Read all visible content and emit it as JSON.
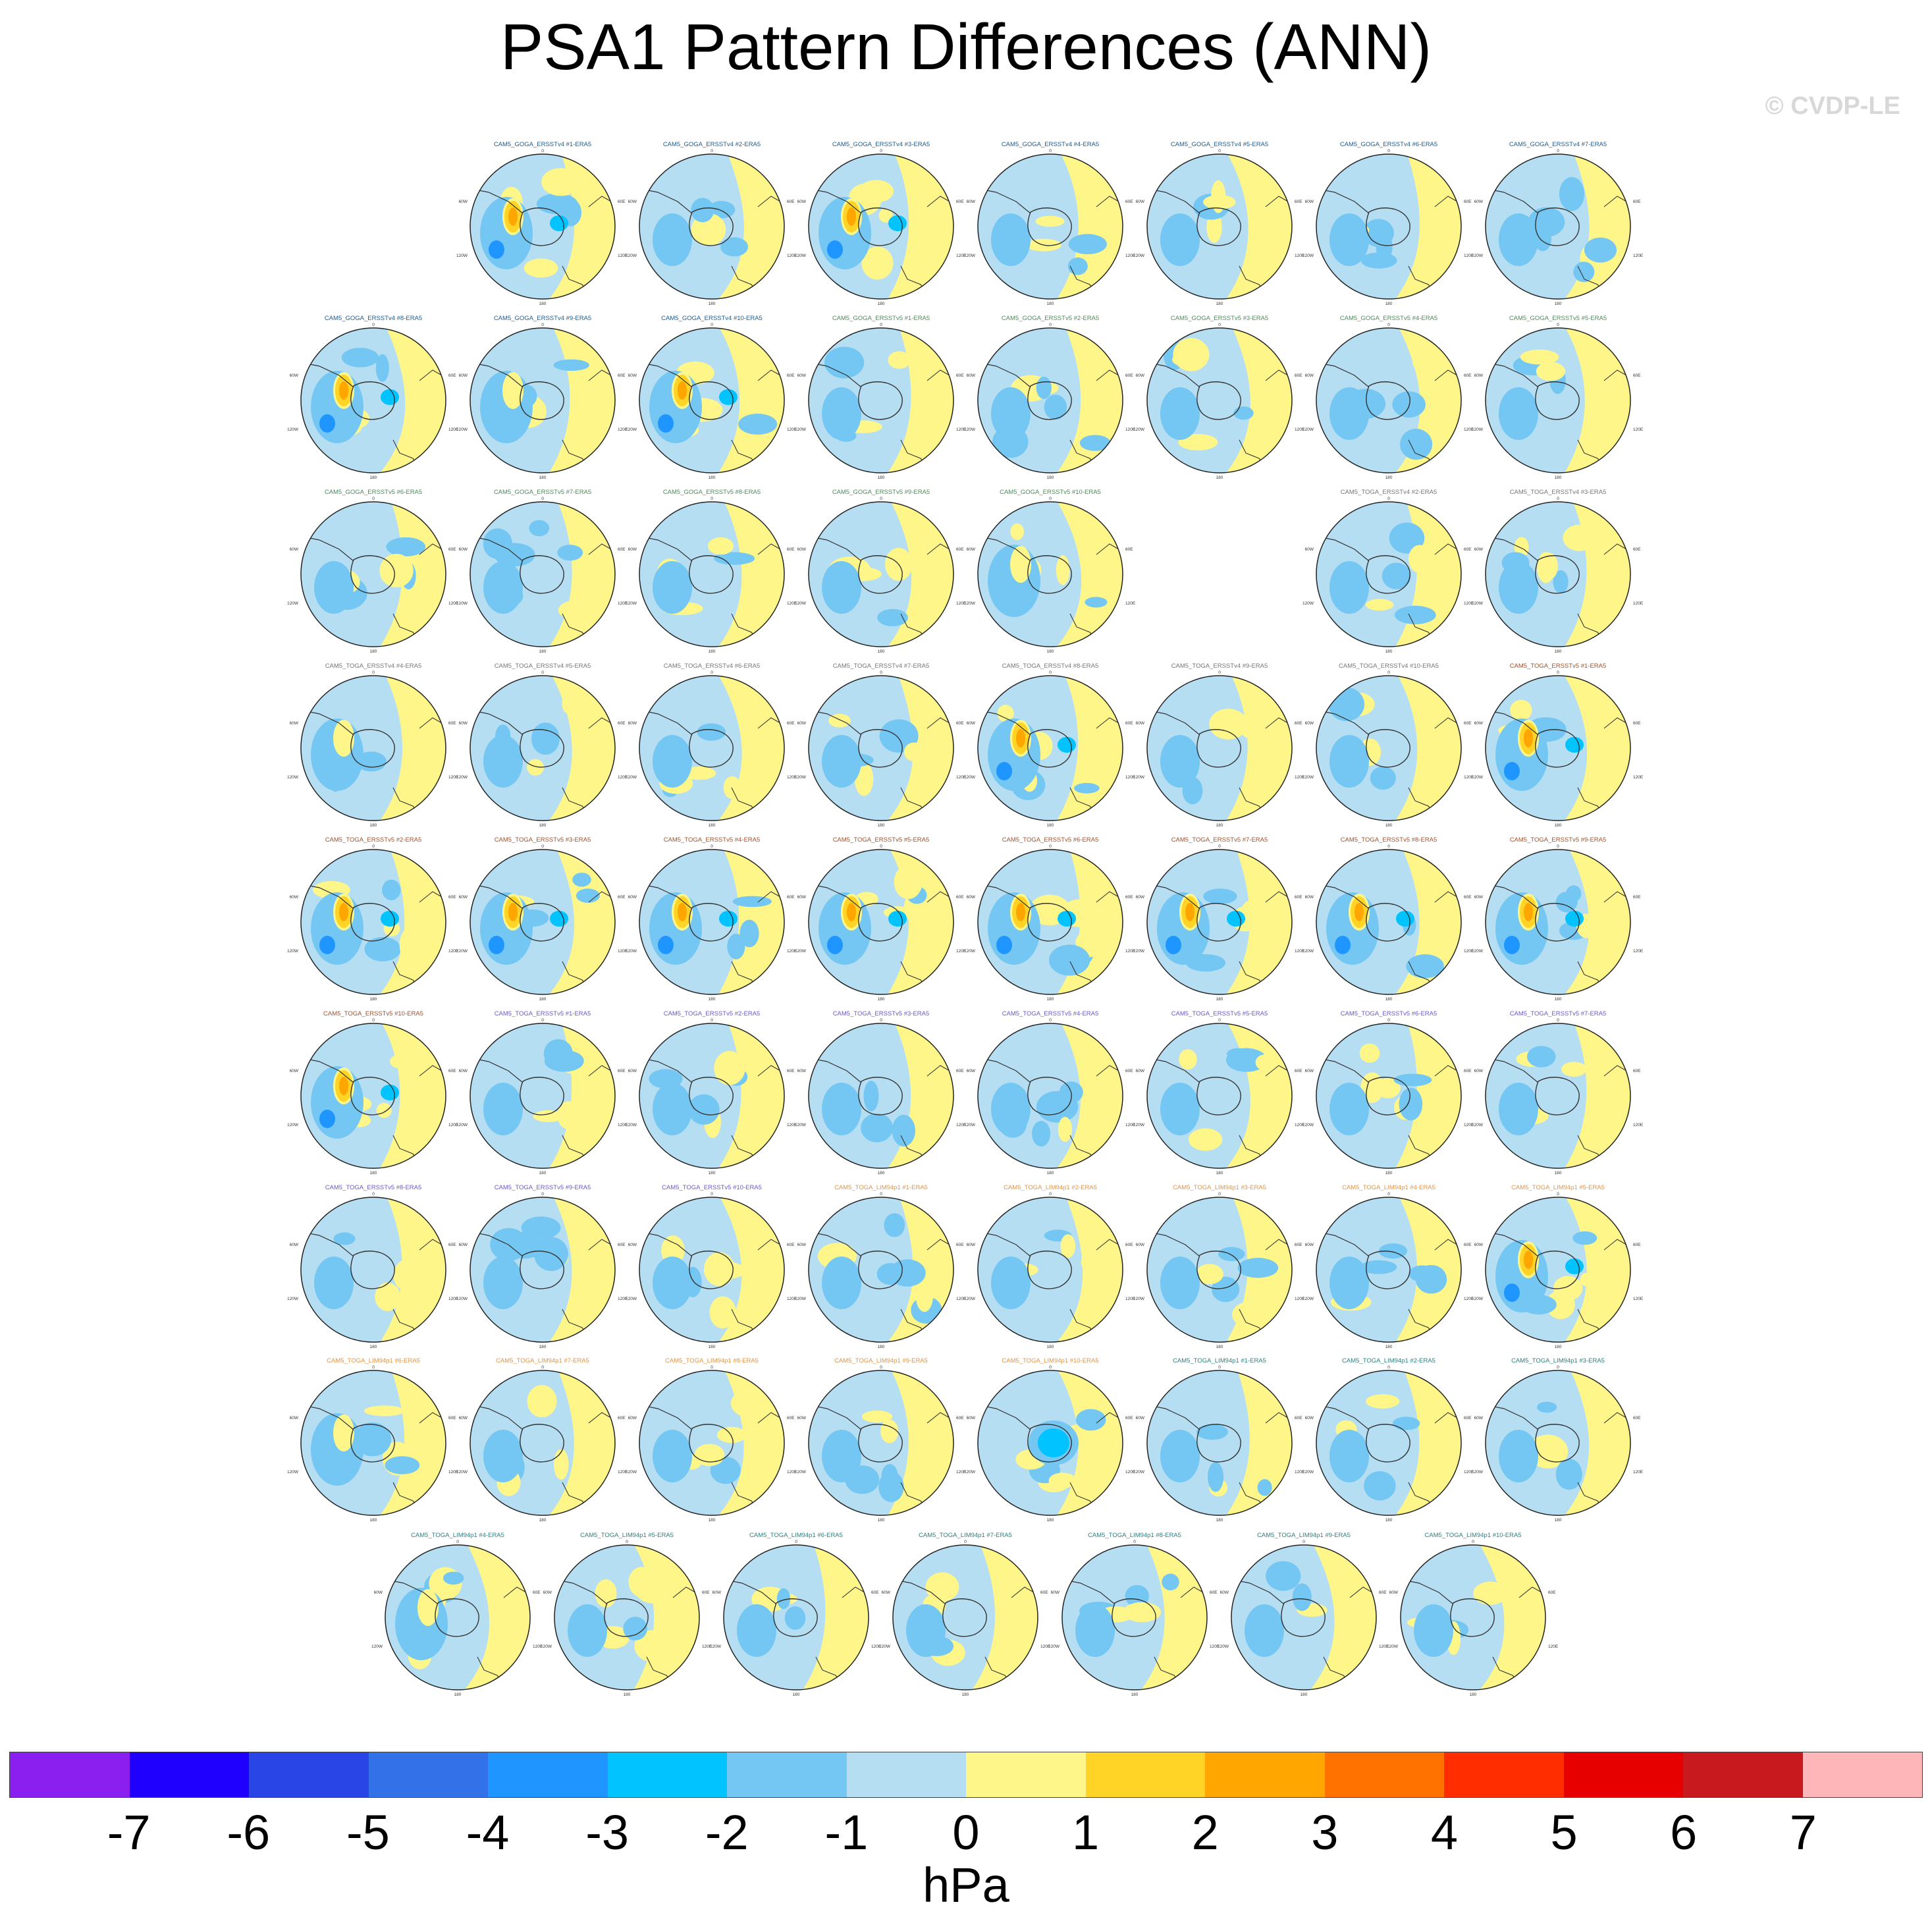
{
  "title": "PSA1 Pattern Differences (ANN)",
  "copyright": "© CVDP-LE",
  "colorbar": {
    "unit": "hPa",
    "labels": [
      "-7",
      "-6",
      "-5",
      "-4",
      "-3",
      "-2",
      "-1",
      "0",
      "1",
      "2",
      "3",
      "4",
      "5",
      "6",
      "7"
    ],
    "colors": [
      "#8a1ff0",
      "#1f00ff",
      "#2a45e6",
      "#3271e8",
      "#1f96ff",
      "#00c3ff",
      "#74c7f2",
      "#b6def2",
      "#fff68a",
      "#ffd427",
      "#ffa600",
      "#ff7200",
      "#ff2d00",
      "#e60000",
      "#c8191e",
      "#ffb6b8"
    ]
  },
  "map_labels": {
    "top": "0",
    "left": "60W",
    "right": "60E",
    "lower_left": "120W",
    "lower_right": "120E",
    "bottom": "180"
  },
  "chart_data": {
    "type": "heatmap",
    "title": "PSA1 Pattern Differences (ANN)",
    "units": "hPa",
    "color_levels": [
      -7,
      -6,
      -5,
      -4,
      -3,
      -2,
      -1,
      0,
      1,
      2,
      3,
      4,
      5,
      6,
      7
    ],
    "panels": [
      {
        "label": "CAM5_GOGA_ERSSTv4 #1-ERA5",
        "color": "#1c5b8f",
        "row": 0,
        "col": 1,
        "pattern": "strong_pos"
      },
      {
        "label": "CAM5_GOGA_ERSSTv4 #2-ERA5",
        "color": "#1c5b8f",
        "row": 0,
        "col": 2,
        "pattern": "weak"
      },
      {
        "label": "CAM5_GOGA_ERSSTv4 #3-ERA5",
        "color": "#1c5b8f",
        "row": 0,
        "col": 3,
        "pattern": "strong_pos"
      },
      {
        "label": "CAM5_GOGA_ERSSTv4 #4-ERA5",
        "color": "#1c5b8f",
        "row": 0,
        "col": 4,
        "pattern": "weak"
      },
      {
        "label": "CAM5_GOGA_ERSSTv4 #5-ERA5",
        "color": "#1c5b8f",
        "row": 0,
        "col": 5,
        "pattern": "weak"
      },
      {
        "label": "CAM5_GOGA_ERSSTv4 #6-ERA5",
        "color": "#1c5b8f",
        "row": 0,
        "col": 6,
        "pattern": "weak"
      },
      {
        "label": "CAM5_GOGA_ERSSTv4 #7-ERA5",
        "color": "#1c5b8f",
        "row": 0,
        "col": 7,
        "pattern": "weak"
      },
      {
        "label": "CAM5_GOGA_ERSSTv4 #8-ERA5",
        "color": "#1c5b8f",
        "row": 1,
        "col": 0,
        "pattern": "strong_pos"
      },
      {
        "label": "CAM5_GOGA_ERSSTv4 #9-ERA5",
        "color": "#1c5b8f",
        "row": 1,
        "col": 1,
        "pattern": "medium"
      },
      {
        "label": "CAM5_GOGA_ERSSTv4 #10-ERA5",
        "color": "#1c5b8f",
        "row": 1,
        "col": 2,
        "pattern": "strong_pos"
      },
      {
        "label": "CAM5_GOGA_ERSSTv5 #1-ERA5",
        "color": "#4e8a5c",
        "row": 1,
        "col": 3,
        "pattern": "weak"
      },
      {
        "label": "CAM5_GOGA_ERSSTv5 #2-ERA5",
        "color": "#4e8a5c",
        "row": 1,
        "col": 4,
        "pattern": "weak"
      },
      {
        "label": "CAM5_GOGA_ERSSTv5 #3-ERA5",
        "color": "#4e8a5c",
        "row": 1,
        "col": 5,
        "pattern": "weak"
      },
      {
        "label": "CAM5_GOGA_ERSSTv5 #4-ERA5",
        "color": "#4e8a5c",
        "row": 1,
        "col": 6,
        "pattern": "weak"
      },
      {
        "label": "CAM5_GOGA_ERSSTv5 #5-ERA5",
        "color": "#4e8a5c",
        "row": 1,
        "col": 7,
        "pattern": "weak"
      },
      {
        "label": "CAM5_GOGA_ERSSTv5 #6-ERA5",
        "color": "#4e8a5c",
        "row": 2,
        "col": 0,
        "pattern": "weak"
      },
      {
        "label": "CAM5_GOGA_ERSSTv5 #7-ERA5",
        "color": "#4e8a5c",
        "row": 2,
        "col": 1,
        "pattern": "weak"
      },
      {
        "label": "CAM5_GOGA_ERSSTv5 #8-ERA5",
        "color": "#4e8a5c",
        "row": 2,
        "col": 2,
        "pattern": "weak"
      },
      {
        "label": "CAM5_GOGA_ERSSTv5 #9-ERA5",
        "color": "#4e8a5c",
        "row": 2,
        "col": 3,
        "pattern": "weak"
      },
      {
        "label": "CAM5_GOGA_ERSSTv5 #10-ERA5",
        "color": "#4e8a5c",
        "row": 2,
        "col": 4,
        "pattern": "medium"
      },
      {
        "label": "CAM5_TOGA_ERSSTv4 #2-ERA5",
        "color": "#777777",
        "row": 2,
        "col": 6,
        "pattern": "weak"
      },
      {
        "label": "CAM5_TOGA_ERSSTv4 #3-ERA5",
        "color": "#777777",
        "row": 2,
        "col": 7,
        "pattern": "weak"
      },
      {
        "label": "CAM5_TOGA_ERSSTv4 #4-ERA5",
        "color": "#777777",
        "row": 3,
        "col": 0,
        "pattern": "medium"
      },
      {
        "label": "CAM5_TOGA_ERSSTv4 #5-ERA5",
        "color": "#777777",
        "row": 3,
        "col": 1,
        "pattern": "weak"
      },
      {
        "label": "CAM5_TOGA_ERSSTv4 #6-ERA5",
        "color": "#777777",
        "row": 3,
        "col": 2,
        "pattern": "weak"
      },
      {
        "label": "CAM5_TOGA_ERSSTv4 #7-ERA5",
        "color": "#777777",
        "row": 3,
        "col": 3,
        "pattern": "weak"
      },
      {
        "label": "CAM5_TOGA_ERSSTv4 #8-ERA5",
        "color": "#777777",
        "row": 3,
        "col": 4,
        "pattern": "strong_pos"
      },
      {
        "label": "CAM5_TOGA_ERSSTv4 #9-ERA5",
        "color": "#777777",
        "row": 3,
        "col": 5,
        "pattern": "weak"
      },
      {
        "label": "CAM5_TOGA_ERSSTv4 #10-ERA5",
        "color": "#777777",
        "row": 3,
        "col": 6,
        "pattern": "weak"
      },
      {
        "label": "CAM5_TOGA_ERSSTv5 #1-ERA5",
        "color": "#a0522d",
        "row": 3,
        "col": 7,
        "pattern": "strong_pos"
      },
      {
        "label": "CAM5_TOGA_ERSSTv5 #2-ERA5",
        "color": "#a0522d",
        "row": 4,
        "col": 0,
        "pattern": "strong_pos"
      },
      {
        "label": "CAM5_TOGA_ERSSTv5 #3-ERA5",
        "color": "#a0522d",
        "row": 4,
        "col": 1,
        "pattern": "strong_pos"
      },
      {
        "label": "CAM5_TOGA_ERSSTv5 #4-ERA5",
        "color": "#a0522d",
        "row": 4,
        "col": 2,
        "pattern": "strong_pos"
      },
      {
        "label": "CAM5_TOGA_ERSSTv5 #5-ERA5",
        "color": "#a0522d",
        "row": 4,
        "col": 3,
        "pattern": "strong_pos"
      },
      {
        "label": "CAM5_TOGA_ERSSTv5 #6-ERA5",
        "color": "#a0522d",
        "row": 4,
        "col": 4,
        "pattern": "strong_pos"
      },
      {
        "label": "CAM5_TOGA_ERSSTv5 #7-ERA5",
        "color": "#a0522d",
        "row": 4,
        "col": 5,
        "pattern": "strong_pos"
      },
      {
        "label": "CAM5_TOGA_ERSSTv5 #8-ERA5",
        "color": "#a0522d",
        "row": 4,
        "col": 6,
        "pattern": "strong_pos"
      },
      {
        "label": "CAM5_TOGA_ERSSTv5 #9-ERA5",
        "color": "#a0522d",
        "row": 4,
        "col": 7,
        "pattern": "strong_pos"
      },
      {
        "label": "CAM5_TOGA_ERSSTv5 #10-ERA5",
        "color": "#a0522d",
        "row": 5,
        "col": 0,
        "pattern": "strong_pos"
      },
      {
        "label": "CAM5_TOGA_ERSSTv5 #1-ERA5",
        "color": "#6a5acd",
        "row": 5,
        "col": 1,
        "pattern": "weak"
      },
      {
        "label": "CAM5_TOGA_ERSSTv5 #2-ERA5",
        "color": "#6a5acd",
        "row": 5,
        "col": 2,
        "pattern": "weak"
      },
      {
        "label": "CAM5_TOGA_ERSSTv5 #3-ERA5",
        "color": "#6a5acd",
        "row": 5,
        "col": 3,
        "pattern": "weak"
      },
      {
        "label": "CAM5_TOGA_ERSSTv5 #4-ERA5",
        "color": "#6a5acd",
        "row": 5,
        "col": 4,
        "pattern": "weak"
      },
      {
        "label": "CAM5_TOGA_ERSSTv5 #5-ERA5",
        "color": "#6a5acd",
        "row": 5,
        "col": 5,
        "pattern": "weak"
      },
      {
        "label": "CAM5_TOGA_ERSSTv5 #6-ERA5",
        "color": "#6a5acd",
        "row": 5,
        "col": 6,
        "pattern": "weak"
      },
      {
        "label": "CAM5_TOGA_ERSSTv5 #7-ERA5",
        "color": "#6a5acd",
        "row": 5,
        "col": 7,
        "pattern": "weak"
      },
      {
        "label": "CAM5_TOGA_ERSSTv5 #8-ERA5",
        "color": "#6a5acd",
        "row": 6,
        "col": 0,
        "pattern": "weak"
      },
      {
        "label": "CAM5_TOGA_ERSSTv5 #9-ERA5",
        "color": "#6a5acd",
        "row": 6,
        "col": 1,
        "pattern": "weak"
      },
      {
        "label": "CAM5_TOGA_ERSSTv5 #10-ERA5",
        "color": "#6a5acd",
        "row": 6,
        "col": 2,
        "pattern": "weak"
      },
      {
        "label": "CAM5_TOGA_LIM94p1 #1-ERA5",
        "color": "#e0954a",
        "row": 6,
        "col": 3,
        "pattern": "weak"
      },
      {
        "label": "CAM5_TOGA_LIM94p1 #2-ERA5",
        "color": "#e0954a",
        "row": 6,
        "col": 4,
        "pattern": "weak"
      },
      {
        "label": "CAM5_TOGA_LIM94p1 #3-ERA5",
        "color": "#e0954a",
        "row": 6,
        "col": 5,
        "pattern": "weak"
      },
      {
        "label": "CAM5_TOGA_LIM94p1 #4-ERA5",
        "color": "#e0954a",
        "row": 6,
        "col": 6,
        "pattern": "weak"
      },
      {
        "label": "CAM5_TOGA_LIM94p1 #5-ERA5",
        "color": "#e0954a",
        "row": 6,
        "col": 7,
        "pattern": "strong_pos"
      },
      {
        "label": "CAM5_TOGA_LIM94p1 #6-ERA5",
        "color": "#e0954a",
        "row": 7,
        "col": 0,
        "pattern": "medium"
      },
      {
        "label": "CAM5_TOGA_LIM94p1 #7-ERA5",
        "color": "#e0954a",
        "row": 7,
        "col": 1,
        "pattern": "weak"
      },
      {
        "label": "CAM5_TOGA_LIM94p1 #8-ERA5",
        "color": "#e0954a",
        "row": 7,
        "col": 2,
        "pattern": "weak"
      },
      {
        "label": "CAM5_TOGA_LIM94p1 #9-ERA5",
        "color": "#e0954a",
        "row": 7,
        "col": 3,
        "pattern": "weak"
      },
      {
        "label": "CAM5_TOGA_LIM94p1 #10-ERA5",
        "color": "#e0954a",
        "row": 7,
        "col": 4,
        "pattern": "strong_neg"
      },
      {
        "label": "CAM5_TOGA_LIM94p1 #1-ERA5",
        "color": "#2f7f7f",
        "row": 7,
        "col": 5,
        "pattern": "weak"
      },
      {
        "label": "CAM5_TOGA_LIM94p1 #2-ERA5",
        "color": "#2f7f7f",
        "row": 7,
        "col": 6,
        "pattern": "weak"
      },
      {
        "label": "CAM5_TOGA_LIM94p1 #3-ERA5",
        "color": "#2f7f7f",
        "row": 7,
        "col": 7,
        "pattern": "weak"
      },
      {
        "label": "CAM5_TOGA_LIM94p1 #4-ERA5",
        "color": "#2f7f7f",
        "row": 8,
        "col": 0,
        "pattern": "medium"
      },
      {
        "label": "CAM5_TOGA_LIM94p1 #5-ERA5",
        "color": "#2f7f7f",
        "row": 8,
        "col": 1,
        "pattern": "weak"
      },
      {
        "label": "CAM5_TOGA_LIM94p1 #6-ERA5",
        "color": "#2f7f7f",
        "row": 8,
        "col": 2,
        "pattern": "weak"
      },
      {
        "label": "CAM5_TOGA_LIM94p1 #7-ERA5",
        "color": "#2f7f7f",
        "row": 8,
        "col": 3,
        "pattern": "weak"
      },
      {
        "label": "CAM5_TOGA_LIM94p1 #8-ERA5",
        "color": "#2f7f7f",
        "row": 8,
        "col": 4,
        "pattern": "weak"
      },
      {
        "label": "CAM5_TOGA_LIM94p1 #9-ERA5",
        "color": "#2f7f7f",
        "row": 8,
        "col": 5,
        "pattern": "weak"
      },
      {
        "label": "CAM5_TOGA_LIM94p1 #10-ERA5",
        "color": "#2f7f7f",
        "row": 8,
        "col": 6,
        "pattern": "weak"
      }
    ]
  }
}
